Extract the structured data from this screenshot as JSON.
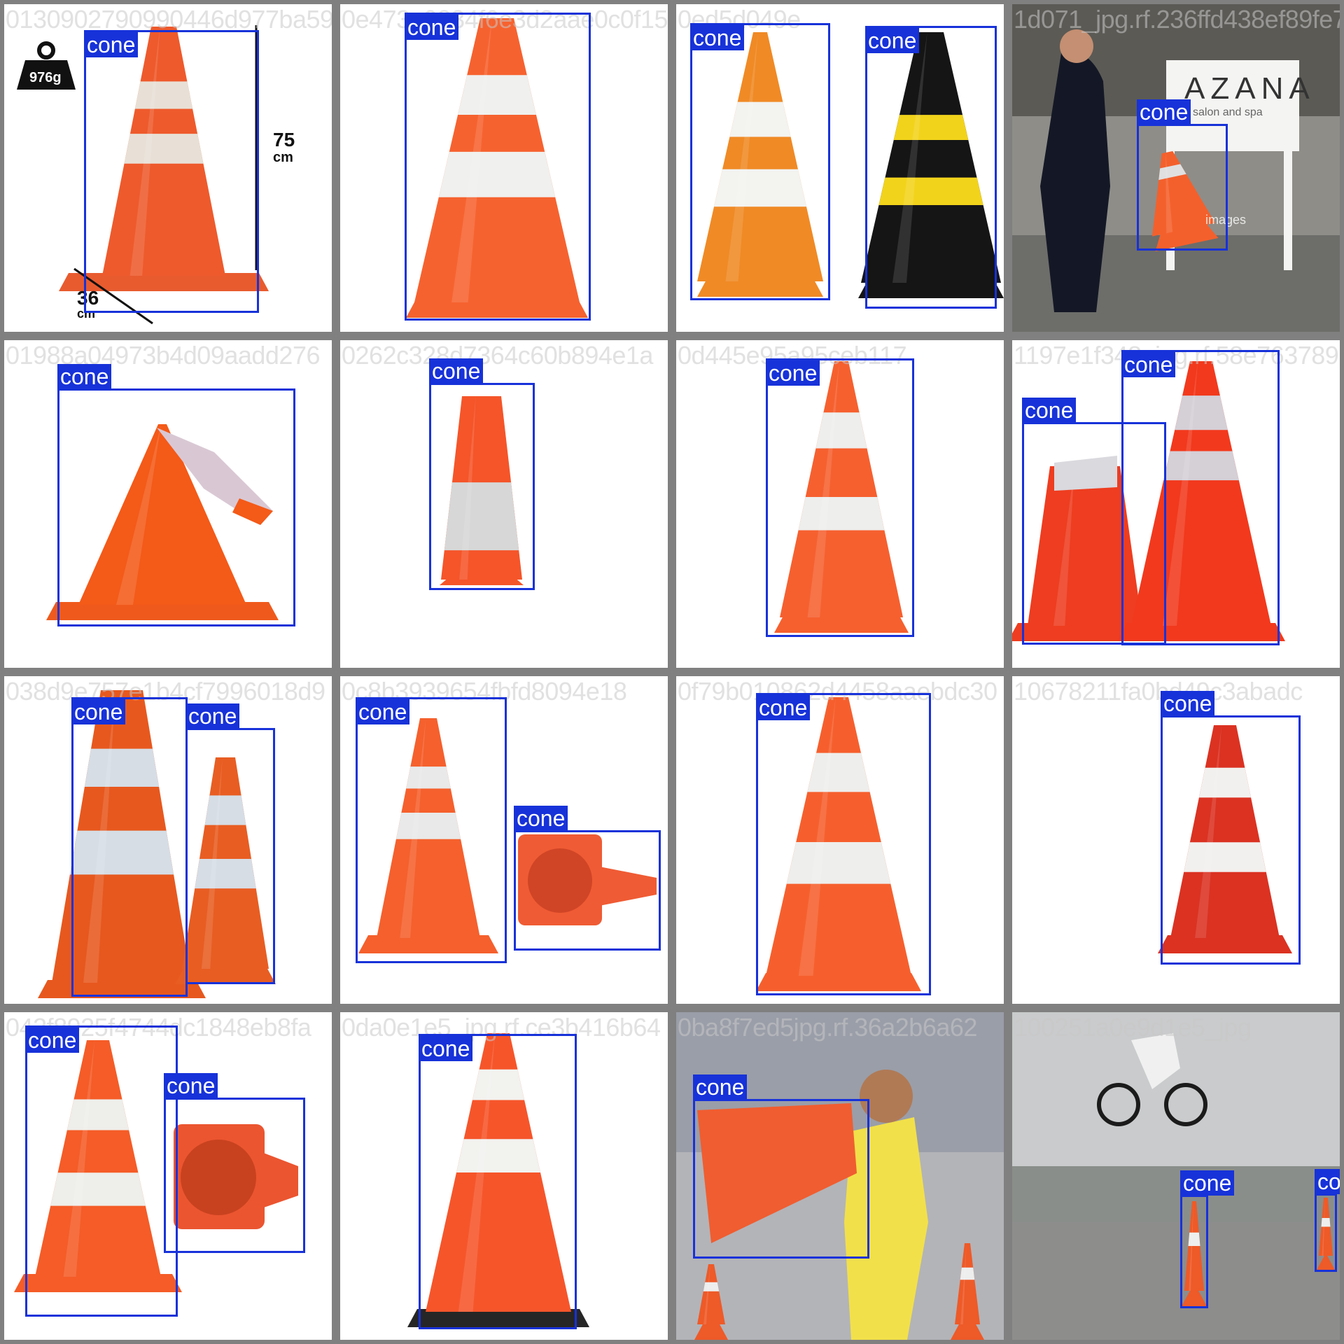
{
  "class_label": "cone",
  "colors": {
    "box": "#1732d9",
    "label_text": "#ffffff",
    "border": "#808080"
  },
  "tiles": [
    {
      "filename": "0130902790990446d977ba59",
      "boxes": 1,
      "annotations": {
        "weight": "976g",
        "height_value": "75",
        "height_unit": "cm",
        "base_value": "36",
        "base_unit": "cm"
      }
    },
    {
      "filename": "0e473e9834f6e3d2aae0c0f15",
      "boxes": 1
    },
    {
      "filename": "0ed5d049e",
      "boxes": 2
    },
    {
      "filename": "1d071_jpg.rf.236ffd438ef89fe7",
      "boxes": 1,
      "sign_text": "AZANA",
      "sign_sub": "salon and spa",
      "watermark": "images"
    },
    {
      "filename": "01988a04973b4d09aadd276",
      "boxes": 1
    },
    {
      "filename": "0262c328d7364c60b894e1a",
      "boxes": 1
    },
    {
      "filename": "0d445e95a95ceb117",
      "boxes": 1
    },
    {
      "filename": "1197e1f348_jpg.rf.58e763789",
      "boxes": 2
    },
    {
      "filename": "038d9e757e1b4cf7996018d9",
      "boxes": 2
    },
    {
      "filename": "0c8b3939654fbfd8094e18",
      "boxes": 2
    },
    {
      "filename": "0f79b010862d4458aaebdc30",
      "boxes": 1
    },
    {
      "filename": "10678211fa0bd49c3abadc",
      "boxes": 1
    },
    {
      "filename": "042f8925f4744dc1848eb8fa",
      "boxes": 2
    },
    {
      "filename": "0da0e1e5_jpg.rf.ce3b416b64",
      "boxes": 1
    },
    {
      "filename": "0ba8f7ed5jpg.rf.36a2b6a62",
      "boxes": 1
    },
    {
      "filename": "100251a0e9d1e5_jpg",
      "boxes": 2
    }
  ]
}
